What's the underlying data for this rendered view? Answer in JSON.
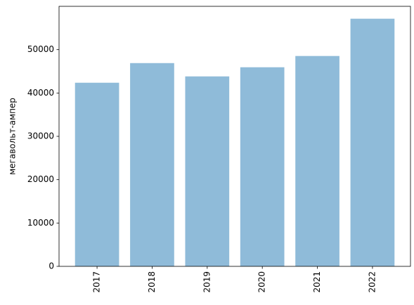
{
  "chart_data": {
    "type": "bar",
    "ylabel": "мегавольт-ампер",
    "categories": [
      "2017",
      "2018",
      "2019",
      "2020",
      "2021",
      "2022"
    ],
    "values": [
      42370,
      46900,
      43830,
      45940,
      48540,
      57140
    ],
    "color": "#8fbbd9",
    "ylim": [
      0,
      60000
    ],
    "yticks": [
      0,
      10000,
      20000,
      30000,
      40000,
      50000
    ]
  }
}
